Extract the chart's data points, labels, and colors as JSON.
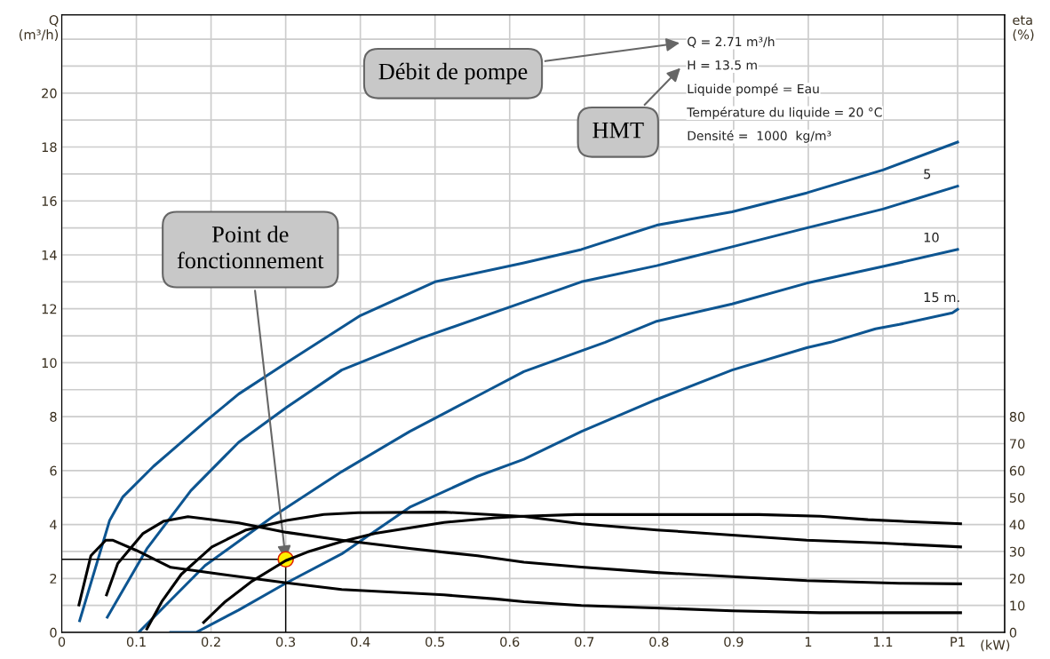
{
  "chart_data": {
    "type": "line",
    "xlabel": "(kW)",
    "ylabel": "Q\n(m³/h)",
    "y2label": "eta\n(%)",
    "xlim": [
      0,
      1.263
    ],
    "ylim": [
      0,
      22.9
    ],
    "y2lim": [
      0,
      229
    ],
    "xticks": [
      0,
      0.1,
      0.2,
      0.3,
      0.4,
      0.5,
      0.6,
      0.7,
      0.8,
      0.9,
      1,
      1.1,
      {
        "value": 1.2,
        "label": "P1"
      }
    ],
    "yticks": [
      0,
      {
        "value": 1,
        "label": null
      },
      2,
      {
        "value": 3,
        "label": null
      },
      4,
      {
        "value": 5,
        "label": null
      },
      6,
      {
        "value": 7,
        "label": null
      },
      8,
      {
        "value": 9,
        "label": null
      },
      10,
      {
        "value": 11,
        "label": null
      },
      12,
      {
        "value": 13,
        "label": null
      },
      14,
      {
        "value": 15,
        "label": null
      },
      16,
      {
        "value": 17,
        "label": null
      },
      18,
      {
        "value": 19,
        "label": null
      },
      20,
      {
        "value": 21,
        "label": null
      },
      {
        "value": 22,
        "label": null
      }
    ],
    "y2ticks": [
      0,
      10,
      20,
      30,
      40,
      50,
      60,
      70,
      80
    ],
    "grid": true,
    "marker": "none",
    "line_style": "solid",
    "series": [
      {
        "color": "#0d5591",
        "x": [
          0.024,
          0.064,
          0.082,
          0.123,
          0.192,
          0.237,
          0.301,
          0.4,
          0.5,
          0.619,
          0.696,
          0.797,
          0.898,
          0.998,
          1.1,
          1.2
        ],
        "values": [
          0.43,
          4.14,
          5.03,
          6.16,
          7.81,
          8.84,
          10.0,
          11.75,
          13.0,
          13.7,
          14.2,
          15.1,
          15.6,
          16.3,
          17.15,
          18.18
        ]
      },
      {
        "name": "5",
        "color": "#0d5591",
        "x": [
          0.061,
          0.114,
          0.173,
          0.237,
          0.301,
          0.375,
          0.48,
          0.619,
          0.696,
          0.797,
          0.898,
          0.998,
          1.1,
          1.2
        ],
        "values": [
          0.56,
          3.1,
          5.26,
          7.05,
          8.34,
          9.73,
          10.9,
          12.25,
          13.0,
          13.6,
          14.3,
          15.0,
          15.7,
          16.55
        ]
      },
      {
        "name": "10",
        "color": "#0d5591",
        "x": [
          0.103,
          0.192,
          0.283,
          0.375,
          0.466,
          0.557,
          0.619,
          0.728,
          0.797,
          0.898,
          0.998,
          1.1,
          1.2
        ],
        "values": [
          0,
          2.48,
          4.3,
          5.96,
          7.45,
          8.77,
          9.67,
          10.76,
          11.54,
          12.18,
          12.95,
          13.57,
          14.2
        ]
      },
      {
        "name": "15 m.",
        "color": "#0d5591",
        "x": [
          0.146,
          0.18,
          0.237,
          0.3,
          0.375,
          0.466,
          0.557,
          0.619,
          0.696,
          0.797,
          0.898,
          0.998,
          1.03,
          1.09,
          1.122,
          1.193,
          1.2
        ],
        "values": [
          0,
          0,
          0.83,
          1.82,
          2.91,
          4.64,
          5.79,
          6.42,
          7.45,
          8.64,
          9.73,
          10.56,
          10.76,
          11.26,
          11.42,
          11.85,
          11.98
        ]
      },
      {
        "axis": "y2",
        "color": "#000000",
        "x": [
          0.023,
          0.039,
          0.059,
          0.068,
          0.1,
          0.146,
          0.215,
          0.301,
          0.375,
          0.512,
          0.581,
          0.619,
          0.696,
          0.802,
          0.898,
          1.016,
          1.204
        ],
        "values": [
          10.2,
          28.4,
          34.2,
          34.2,
          30.4,
          24.1,
          21.5,
          18.4,
          15.9,
          13.9,
          12.4,
          11.4,
          10.0,
          9.0,
          8.0,
          7.3,
          7.3
        ]
      },
      {
        "axis": "y2",
        "color": "#000000",
        "x": [
          0.06,
          0.075,
          0.109,
          0.137,
          0.169,
          0.237,
          0.301,
          0.375,
          0.466,
          0.557,
          0.619,
          0.696,
          0.797,
          0.898,
          0.998,
          1.122,
          1.204
        ],
        "values": [
          13.9,
          25.5,
          36.7,
          41.3,
          42.9,
          40.6,
          37.1,
          34.2,
          31.1,
          28.4,
          26.0,
          24.2,
          22.2,
          20.7,
          19.2,
          18.2,
          18.0
        ]
      },
      {
        "axis": "y2",
        "color": "#000000",
        "x": [
          0.114,
          0.134,
          0.16,
          0.201,
          0.247,
          0.301,
          0.351,
          0.397,
          0.512,
          0.619,
          0.696,
          0.797,
          0.898,
          0.998,
          1.1,
          1.204
        ],
        "values": [
          1.3,
          11.4,
          21.5,
          31.7,
          38.0,
          41.5,
          43.7,
          44.4,
          44.6,
          43.0,
          40.3,
          38.0,
          36.1,
          34.2,
          33.1,
          31.7
        ]
      },
      {
        "axis": "y2",
        "color": "#000000",
        "x": [
          0.19,
          0.219,
          0.255,
          0.3,
          0.329,
          0.375,
          0.42,
          0.512,
          0.581,
          0.619,
          0.688,
          0.802,
          0.934,
          1.016,
          1.08,
          1.14,
          1.204
        ],
        "values": [
          3.7,
          11.4,
          19.0,
          26.6,
          29.8,
          33.7,
          36.7,
          40.8,
          42.5,
          43.1,
          43.7,
          43.7,
          43.7,
          43.1,
          41.8,
          41.0,
          40.3
        ]
      },
      {
        "color": "#000000",
        "x": [
          0,
          0.3,
          0.3
        ],
        "values": [
          2.71,
          2.71,
          0
        ]
      },
      {
        "type": "scatter",
        "marker": "circle",
        "color": "#ffee00",
        "x": [
          0.3
        ],
        "values": [
          2.71
        ]
      }
    ],
    "annotations": [
      "Q = 2.71 m³/h",
      "H = 13.5 m",
      "Liquide pompé = Eau",
      "Température du liquide = 20 °C",
      "Densité =  1000  kg/m³",
      "Débit de pompe",
      "HMT",
      {
        "text": "Point de\nfonctionnement",
        "x": 0.3,
        "y": 2.71
      }
    ]
  }
}
